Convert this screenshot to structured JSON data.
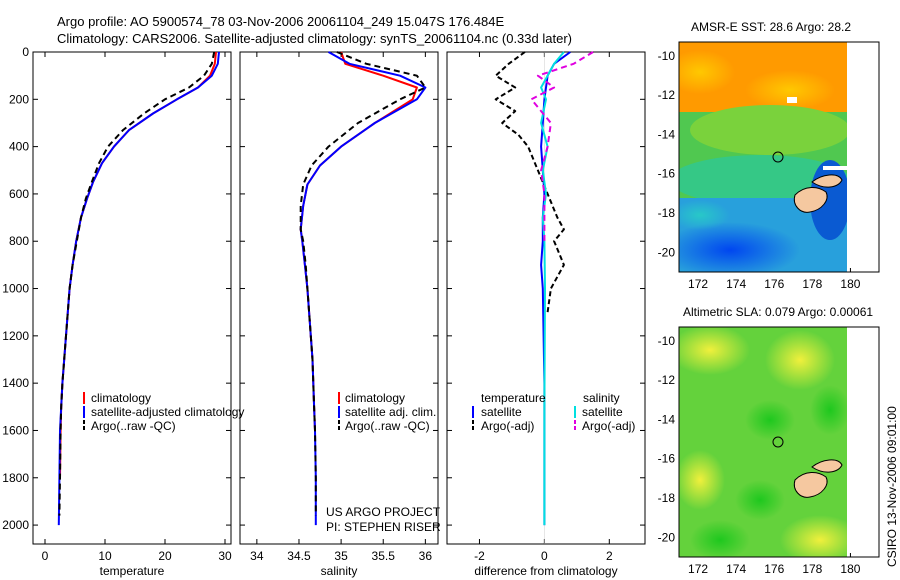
{
  "header": {
    "line1": "Argo profile: AO 5900574_78 03-Nov-2006 20061104_249 15.047S 176.484E",
    "line2": "Climatology: CARS2006. Satellite-adjusted climatology: synTS_20061104.nc (0.33d later)"
  },
  "credits": {
    "project": "US ARGO PROJECT",
    "pi": "PI: STEPHEN RISER",
    "csiro": "CSIRO 13-Nov-2006 09:01:00"
  },
  "colors": {
    "climatology": "#ff0000",
    "satellite": "#0000ff",
    "argo": "#000000",
    "sat_salinity": "#00e0e0",
    "argo_salinity": "#e000e0"
  },
  "chart_data": [
    {
      "id": "temperature",
      "type": "line",
      "xlabel": "temperature",
      "xticks": [
        0,
        10,
        20,
        30
      ],
      "xlim": [
        -2,
        31
      ],
      "yticks": [
        0,
        200,
        400,
        600,
        800,
        1000,
        1200,
        1400,
        1600,
        1800,
        2000
      ],
      "ylim": [
        2080,
        0
      ],
      "legend": [
        "climatology",
        "satellite-adjusted climatology",
        "Argo(..raw -QC)"
      ],
      "series": [
        {
          "name": "climatology",
          "color": "#ff0000",
          "dash": "",
          "x": [
            28.5,
            28.3,
            27.5,
            25.5,
            22,
            18,
            14,
            11.5,
            9.5,
            8,
            7,
            6,
            5.2,
            4.6,
            4.1,
            3.8,
            3.5,
            3.2,
            2.9,
            2.7,
            2.6,
            2.5
          ],
          "y": [
            0,
            50,
            100,
            150,
            200,
            260,
            330,
            400,
            470,
            550,
            620,
            700,
            800,
            900,
            1000,
            1100,
            1200,
            1300,
            1400,
            1500,
            1600,
            1800
          ]
        },
        {
          "name": "satellite-adjusted climatology",
          "color": "#0000ff",
          "dash": "",
          "x": [
            29,
            28.8,
            27.8,
            25.5,
            22,
            18,
            14,
            11.5,
            9.5,
            8,
            7,
            6,
            5.2,
            4.6,
            4.1,
            3.8,
            3.5,
            3.2,
            2.9,
            2.7,
            2.5,
            2.4,
            2.3
          ],
          "y": [
            0,
            50,
            100,
            150,
            200,
            260,
            330,
            400,
            470,
            550,
            620,
            700,
            800,
            900,
            1000,
            1100,
            1200,
            1300,
            1400,
            1500,
            1600,
            1800,
            2000
          ]
        },
        {
          "name": "Argo(..raw -QC)",
          "color": "#000000",
          "dash": "6,4",
          "x": [
            28.2,
            27.8,
            26.5,
            24,
            20,
            16.5,
            13,
            10.5,
            9,
            7.8,
            6.8,
            6,
            5.3,
            4.6,
            4.1,
            3.8,
            3.5,
            3.2,
            2.9,
            2.7,
            2.6,
            2.5,
            2.4
          ],
          "y": [
            0,
            50,
            100,
            150,
            200,
            260,
            330,
            400,
            470,
            550,
            620,
            700,
            800,
            900,
            1000,
            1100,
            1200,
            1300,
            1400,
            1500,
            1600,
            1800,
            1960
          ]
        }
      ]
    },
    {
      "id": "salinity",
      "type": "line",
      "xlabel": "salinity",
      "xticks": [
        34,
        34.5,
        35,
        35.5,
        36
      ],
      "xlim": [
        33.8,
        36.15
      ],
      "yticks": [
        0,
        200,
        400,
        600,
        800,
        1000,
        1200,
        1400,
        1600,
        1800,
        2000
      ],
      "ylim": [
        2080,
        0
      ],
      "legend": [
        "climatology",
        "satellite adj. clim.",
        "Argo(..raw -QC)"
      ],
      "series": [
        {
          "name": "climatology",
          "color": "#ff0000",
          "dash": "",
          "x": [
            35.0,
            35.05,
            35.5,
            35.9,
            35.85,
            35.4,
            35.0,
            34.75,
            34.6,
            34.55,
            34.52,
            34.54,
            34.57,
            34.6,
            34.62,
            34.64,
            34.66,
            34.67,
            34.68,
            34.69
          ],
          "y": [
            0,
            50,
            100,
            150,
            200,
            300,
            400,
            480,
            560,
            650,
            750,
            800,
            900,
            1000,
            1100,
            1200,
            1300,
            1400,
            1500,
            1600
          ]
        },
        {
          "name": "satellite adj. clim.",
          "color": "#0000ff",
          "dash": "",
          "x": [
            34.85,
            35.1,
            35.7,
            36.0,
            35.9,
            35.4,
            35.0,
            34.75,
            34.6,
            34.55,
            34.52,
            34.54,
            34.57,
            34.6,
            34.62,
            34.64,
            34.66,
            34.67,
            34.68,
            34.69,
            34.7,
            34.7
          ],
          "y": [
            0,
            50,
            100,
            150,
            200,
            300,
            400,
            480,
            560,
            650,
            750,
            800,
            900,
            1000,
            1100,
            1200,
            1300,
            1400,
            1500,
            1600,
            1800,
            2000
          ]
        },
        {
          "name": "Argo(..raw -QC)",
          "color": "#000000",
          "dash": "6,4",
          "x": [
            34.95,
            35.3,
            35.9,
            36.0,
            35.7,
            35.2,
            34.85,
            34.65,
            34.55,
            34.52,
            34.52,
            34.55,
            34.58,
            34.6,
            34.62,
            34.64,
            34.66,
            34.67,
            34.68,
            34.69,
            34.7,
            34.7
          ],
          "y": [
            0,
            50,
            100,
            150,
            200,
            300,
            400,
            480,
            560,
            650,
            750,
            800,
            900,
            1000,
            1100,
            1200,
            1300,
            1400,
            1500,
            1600,
            1800,
            1960
          ]
        }
      ]
    },
    {
      "id": "difference",
      "type": "line",
      "xlabel": "difference from climatology",
      "xticks": [
        -2,
        0,
        2
      ],
      "xlim": [
        -3,
        3.1
      ],
      "yticks": [
        0,
        200,
        400,
        600,
        800,
        1000,
        1200,
        1400,
        1600,
        1800,
        2000
      ],
      "ylim": [
        2080,
        0
      ],
      "legend_title_left": "temperature",
      "legend_title_right": "salinity",
      "legend": [
        "satellite",
        "Argo(-adj)",
        "satellite",
        "Argo(-adj)"
      ],
      "series": [
        {
          "name": "satellite",
          "color": "#0000ff",
          "dash": "",
          "x": [
            0.8,
            0.3,
            0.1,
            0.05,
            0,
            -0.05,
            -0.1,
            -0.05,
            0,
            -0.05,
            -0.05,
            -0.1,
            -0.05,
            0,
            0,
            0
          ],
          "y": [
            0,
            50,
            100,
            150,
            200,
            300,
            400,
            500,
            600,
            700,
            800,
            900,
            1000,
            1400,
            1800,
            2000
          ]
        },
        {
          "name": "Argo(-adj)",
          "color": "#000000",
          "dash": "5,3",
          "x": [
            -0.6,
            -1.1,
            -1.5,
            -0.9,
            -1.5,
            -0.9,
            -1.3,
            -0.8,
            -0.5,
            -0.2,
            0.1,
            0.4,
            0.6,
            0.3,
            0.6,
            0.2,
            0.1
          ],
          "y": [
            0,
            50,
            100,
            150,
            200,
            250,
            300,
            350,
            400,
            500,
            600,
            700,
            750,
            800,
            900,
            1000,
            1100
          ]
        },
        {
          "name": "satellite",
          "color": "#00e0e0",
          "dash": "",
          "x": [
            0.6,
            0.3,
            0.1,
            -0.1,
            0.05,
            -0.1,
            0.1,
            -0.05,
            0.05,
            -0.05,
            0,
            0.02,
            0,
            0
          ],
          "y": [
            0,
            50,
            100,
            150,
            200,
            300,
            400,
            500,
            600,
            700,
            800,
            1000,
            1500,
            2000
          ]
        },
        {
          "name": "Argo(-adj)",
          "color": "#e000e0",
          "dash": "6,4",
          "x": [
            1.5,
            0.9,
            -0.2,
            0.3,
            -0.4,
            0.2,
            0.1,
            -0.1,
            0,
            0
          ],
          "y": [
            0,
            50,
            100,
            150,
            200,
            300,
            400,
            500,
            600,
            800
          ]
        }
      ]
    },
    {
      "id": "sst_map",
      "type": "heatmap",
      "title": "AMSR-E SST: 28.6 Argo: 28.2",
      "xticks": [
        172,
        174,
        176,
        178,
        180
      ],
      "yticks": [
        -10,
        -12,
        -14,
        -16,
        -18,
        -20
      ],
      "xlim": [
        171,
        181.5
      ],
      "ylim": [
        -21,
        -9.3
      ],
      "marker": {
        "lon": 176.484,
        "lat": -15.047
      }
    },
    {
      "id": "sla_map",
      "type": "heatmap",
      "title": "Altimetric SLA: 0.079 Argo: 0.00061",
      "xticks": [
        172,
        174,
        176,
        178,
        180
      ],
      "yticks": [
        -10,
        -12,
        -14,
        -16,
        -18,
        -20
      ],
      "xlim": [
        171,
        181.5
      ],
      "ylim": [
        -21,
        -9.3
      ],
      "marker": {
        "lon": 176.484,
        "lat": -15.047
      }
    }
  ]
}
